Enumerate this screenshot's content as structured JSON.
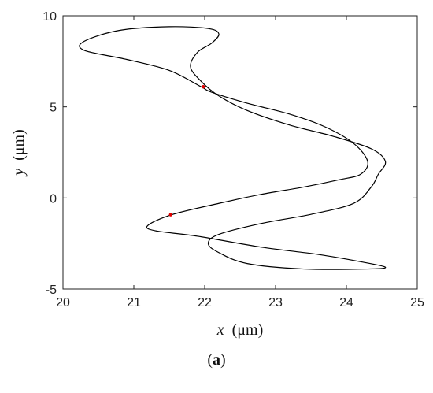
{
  "chart_data": {
    "type": "line",
    "xlabel_var": "x",
    "xlabel_unit": "(μm)",
    "ylabel_var": "y",
    "ylabel_unit": "(μm)",
    "xlim": [
      20,
      25
    ],
    "ylim": [
      -5,
      10
    ],
    "xticks": [
      20,
      21,
      22,
      23,
      24,
      25
    ],
    "yticks": [
      -5,
      0,
      5,
      10
    ],
    "grid": false,
    "series": [
      {
        "color": "#000000",
        "closed": true,
        "points": [
          [
            21.95,
            6.1
          ],
          [
            22.1,
            5.8
          ],
          [
            22.6,
            5.2
          ],
          [
            23.2,
            4.6
          ],
          [
            23.7,
            3.9
          ],
          [
            24.1,
            3.0
          ],
          [
            24.3,
            2.0
          ],
          [
            24.2,
            1.3
          ],
          [
            23.9,
            1.0
          ],
          [
            23.4,
            0.6
          ],
          [
            22.8,
            0.2
          ],
          [
            22.2,
            -0.3
          ],
          [
            21.55,
            -0.9
          ],
          [
            21.2,
            -1.5
          ],
          [
            21.3,
            -1.8
          ],
          [
            21.9,
            -2.1
          ],
          [
            22.8,
            -2.7
          ],
          [
            23.6,
            -3.1
          ],
          [
            24.2,
            -3.5
          ],
          [
            24.55,
            -3.8
          ],
          [
            24.3,
            -3.9
          ],
          [
            23.4,
            -3.9
          ],
          [
            22.6,
            -3.6
          ],
          [
            22.2,
            -3.0
          ],
          [
            22.05,
            -2.5
          ],
          [
            22.2,
            -2.0
          ],
          [
            22.8,
            -1.4
          ],
          [
            23.5,
            -0.9
          ],
          [
            24.1,
            -0.3
          ],
          [
            24.35,
            0.6
          ],
          [
            24.45,
            1.3
          ],
          [
            24.55,
            2.0
          ],
          [
            24.35,
            2.7
          ],
          [
            23.8,
            3.4
          ],
          [
            23.2,
            4.0
          ],
          [
            22.6,
            4.8
          ],
          [
            22.2,
            5.6
          ],
          [
            21.95,
            6.4
          ],
          [
            21.8,
            7.2
          ],
          [
            21.9,
            8.0
          ],
          [
            22.1,
            8.5
          ],
          [
            22.2,
            9.0
          ],
          [
            22.05,
            9.3
          ],
          [
            21.5,
            9.4
          ],
          [
            20.8,
            9.2
          ],
          [
            20.3,
            8.6
          ],
          [
            20.3,
            8.1
          ],
          [
            20.9,
            7.6
          ],
          [
            21.5,
            7.0
          ],
          [
            21.95,
            6.1
          ]
        ]
      }
    ],
    "markers": [
      {
        "x": 21.98,
        "y": 6.1,
        "color": "#e00000"
      },
      {
        "x": 21.52,
        "y": -0.92,
        "color": "#e00000"
      }
    ]
  },
  "panel_label": "a"
}
